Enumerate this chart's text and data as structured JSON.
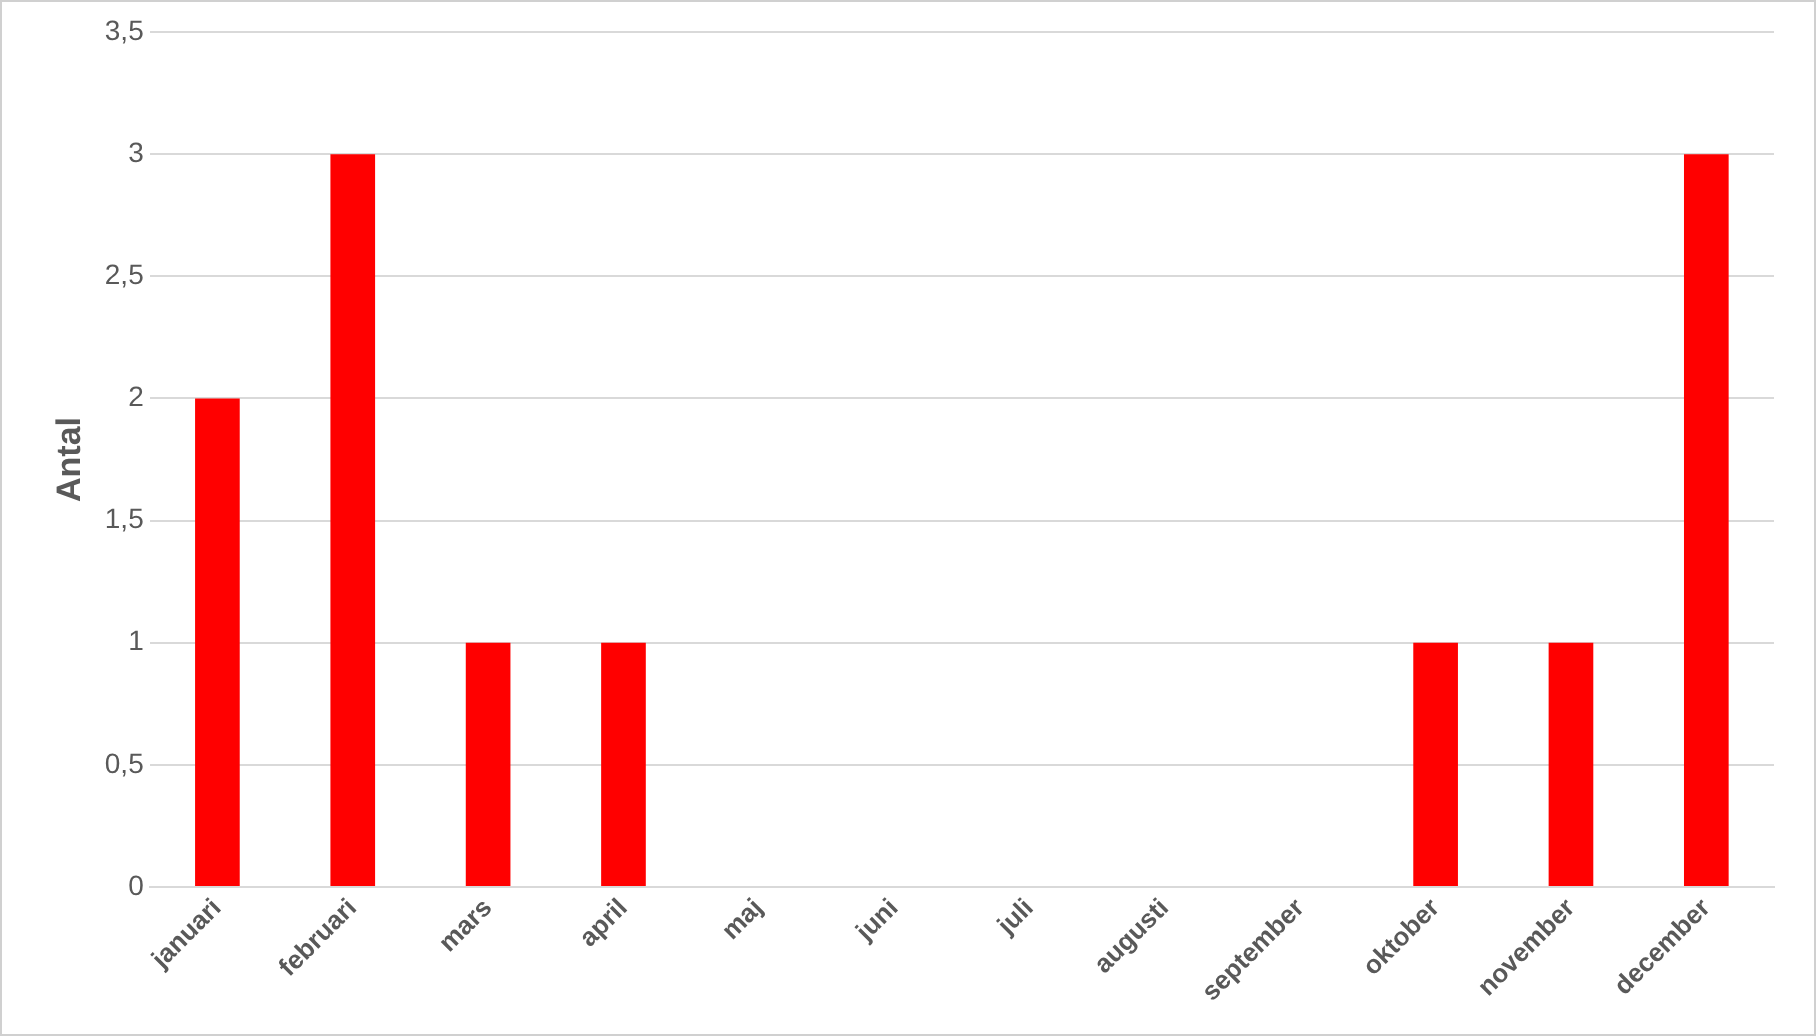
{
  "chart_data": {
    "type": "bar",
    "ylabel": "Antal",
    "categories": [
      "januari",
      "februari",
      "mars",
      "april",
      "maj",
      "juni",
      "juli",
      "augusti",
      "september",
      "oktober",
      "november",
      "december"
    ],
    "values": [
      2,
      3,
      1,
      1,
      0,
      0,
      0,
      0,
      0,
      1,
      1,
      3
    ],
    "color": "#ff0000",
    "ylim": [
      0,
      3.5
    ],
    "yticks": [
      0,
      {
        "value": 0.5,
        "label": "0,5"
      },
      1,
      {
        "value": 1.5,
        "label": "1,5"
      },
      2,
      {
        "value": 2.5,
        "label": "2,5"
      },
      3,
      {
        "value": 3.5,
        "label": "3,5"
      }
    ],
    "grid": "y",
    "legend": false
  }
}
